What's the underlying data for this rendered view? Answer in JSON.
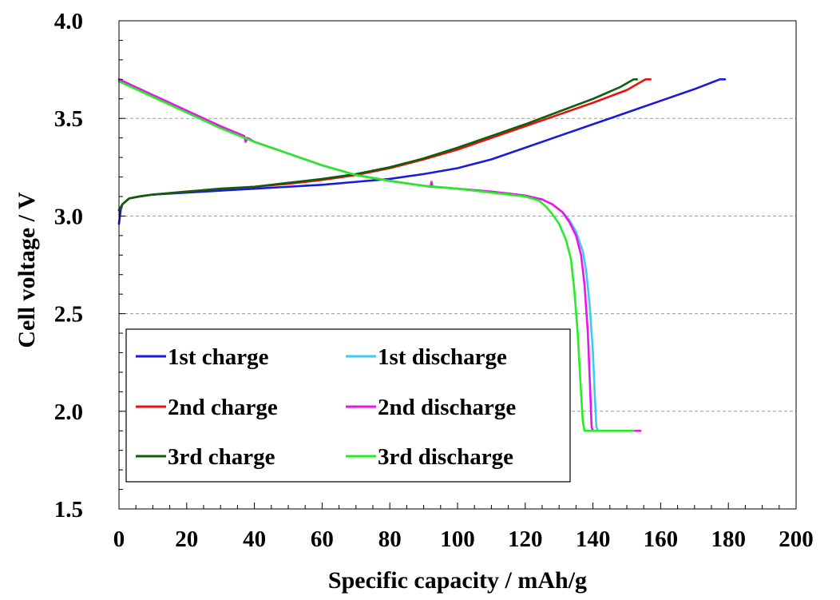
{
  "chart_data": {
    "type": "line",
    "title": "",
    "xlabel": "Specific capacity / mAh/g",
    "ylabel": "Cell voltage / V",
    "xlim": [
      0,
      200
    ],
    "ylim": [
      1.5,
      4.0
    ],
    "xticks": [
      "0",
      "20",
      "40",
      "60",
      "80",
      "100",
      "120",
      "140",
      "160",
      "180",
      "200"
    ],
    "yticks": [
      "1.5",
      "2.0",
      "2.5",
      "3.0",
      "3.5",
      "4.0"
    ],
    "grid": "horizontal dashed at 2.0, 2.5, 3.0, 3.5",
    "legend_position": "lower-left",
    "series": [
      {
        "name": "1st charge",
        "color": "#1a1adb",
        "points": [
          [
            0,
            2.96
          ],
          [
            0.5,
            3.03
          ],
          [
            1,
            3.06
          ],
          [
            3,
            3.09
          ],
          [
            6,
            3.1
          ],
          [
            10,
            3.11
          ],
          [
            20,
            3.12
          ],
          [
            30,
            3.13
          ],
          [
            40,
            3.14
          ],
          [
            50,
            3.15
          ],
          [
            60,
            3.16
          ],
          [
            70,
            3.175
          ],
          [
            80,
            3.19
          ],
          [
            90,
            3.215
          ],
          [
            100,
            3.245
          ],
          [
            110,
            3.29
          ],
          [
            120,
            3.35
          ],
          [
            130,
            3.41
          ],
          [
            140,
            3.47
          ],
          [
            150,
            3.53
          ],
          [
            160,
            3.59
          ],
          [
            170,
            3.65
          ],
          [
            176,
            3.69
          ],
          [
            177.5,
            3.7
          ],
          [
            179,
            3.7
          ]
        ]
      },
      {
        "name": "1st discharge",
        "color": "#40c8f0",
        "points": [
          [
            0,
            3.7
          ],
          [
            10,
            3.62
          ],
          [
            20,
            3.54
          ],
          [
            30,
            3.46
          ],
          [
            40,
            3.38
          ],
          [
            50,
            3.32
          ],
          [
            60,
            3.26
          ],
          [
            70,
            3.21
          ],
          [
            80,
            3.18
          ],
          [
            90,
            3.155
          ],
          [
            100,
            3.14
          ],
          [
            110,
            3.125
          ],
          [
            120,
            3.105
          ],
          [
            125,
            3.085
          ],
          [
            128,
            3.06
          ],
          [
            131,
            3.02
          ],
          [
            133,
            2.98
          ],
          [
            135,
            2.92
          ],
          [
            137,
            2.82
          ],
          [
            138,
            2.72
          ],
          [
            139,
            2.55
          ],
          [
            140,
            2.3
          ],
          [
            140.5,
            2.1
          ],
          [
            141,
            1.92
          ],
          [
            141.5,
            1.9
          ],
          [
            152,
            1.9
          ]
        ]
      },
      {
        "name": "2nd charge",
        "color": "#e81010",
        "points": [
          [
            0,
            3.03
          ],
          [
            1,
            3.06
          ],
          [
            3,
            3.09
          ],
          [
            6,
            3.1
          ],
          [
            10,
            3.11
          ],
          [
            20,
            3.125
          ],
          [
            30,
            3.14
          ],
          [
            40,
            3.15
          ],
          [
            50,
            3.165
          ],
          [
            60,
            3.185
          ],
          [
            70,
            3.21
          ],
          [
            80,
            3.245
          ],
          [
            90,
            3.29
          ],
          [
            100,
            3.34
          ],
          [
            110,
            3.4
          ],
          [
            120,
            3.46
          ],
          [
            130,
            3.52
          ],
          [
            140,
            3.58
          ],
          [
            150,
            3.645
          ],
          [
            154,
            3.685
          ],
          [
            155.5,
            3.7
          ],
          [
            157,
            3.7
          ]
        ]
      },
      {
        "name": "2nd discharge",
        "color": "#ee10ee",
        "points": [
          [
            0,
            3.7
          ],
          [
            10,
            3.62
          ],
          [
            20,
            3.54
          ],
          [
            30,
            3.46
          ],
          [
            37,
            3.41
          ],
          [
            37.4,
            3.38
          ],
          [
            38,
            3.4
          ],
          [
            40,
            3.38
          ],
          [
            50,
            3.32
          ],
          [
            60,
            3.26
          ],
          [
            70,
            3.21
          ],
          [
            80,
            3.18
          ],
          [
            90,
            3.155
          ],
          [
            92,
            3.15
          ],
          [
            92.3,
            3.175
          ],
          [
            92.6,
            3.15
          ],
          [
            100,
            3.14
          ],
          [
            110,
            3.125
          ],
          [
            120,
            3.105
          ],
          [
            125,
            3.085
          ],
          [
            128,
            3.06
          ],
          [
            131,
            3.02
          ],
          [
            133,
            2.97
          ],
          [
            135,
            2.9
          ],
          [
            136.5,
            2.8
          ],
          [
            137.5,
            2.65
          ],
          [
            138.5,
            2.4
          ],
          [
            139.2,
            2.1
          ],
          [
            139.6,
            1.92
          ],
          [
            140,
            1.9
          ],
          [
            154,
            1.9
          ]
        ]
      },
      {
        "name": "3rd charge",
        "color": "#0e5e0e",
        "points": [
          [
            0,
            3.03
          ],
          [
            1,
            3.06
          ],
          [
            3,
            3.09
          ],
          [
            6,
            3.1
          ],
          [
            10,
            3.11
          ],
          [
            20,
            3.125
          ],
          [
            30,
            3.14
          ],
          [
            40,
            3.15
          ],
          [
            50,
            3.17
          ],
          [
            60,
            3.19
          ],
          [
            70,
            3.215
          ],
          [
            80,
            3.25
          ],
          [
            90,
            3.295
          ],
          [
            100,
            3.35
          ],
          [
            110,
            3.41
          ],
          [
            120,
            3.47
          ],
          [
            130,
            3.535
          ],
          [
            140,
            3.6
          ],
          [
            148,
            3.66
          ],
          [
            151,
            3.69
          ],
          [
            152,
            3.7
          ],
          [
            153,
            3.7
          ]
        ]
      },
      {
        "name": "3rd discharge",
        "color": "#22ee22",
        "points": [
          [
            0,
            3.69
          ],
          [
            10,
            3.61
          ],
          [
            20,
            3.53
          ],
          [
            30,
            3.45
          ],
          [
            40,
            3.38
          ],
          [
            50,
            3.32
          ],
          [
            60,
            3.26
          ],
          [
            70,
            3.21
          ],
          [
            80,
            3.18
          ],
          [
            90,
            3.155
          ],
          [
            100,
            3.14
          ],
          [
            110,
            3.12
          ],
          [
            120,
            3.1
          ],
          [
            124,
            3.08
          ],
          [
            126,
            3.05
          ],
          [
            128,
            3.01
          ],
          [
            130,
            2.96
          ],
          [
            132,
            2.88
          ],
          [
            133.5,
            2.78
          ],
          [
            134.5,
            2.62
          ],
          [
            135.5,
            2.4
          ],
          [
            136.3,
            2.15
          ],
          [
            137,
            1.95
          ],
          [
            137.5,
            1.9
          ],
          [
            152,
            1.9
          ]
        ]
      }
    ]
  }
}
